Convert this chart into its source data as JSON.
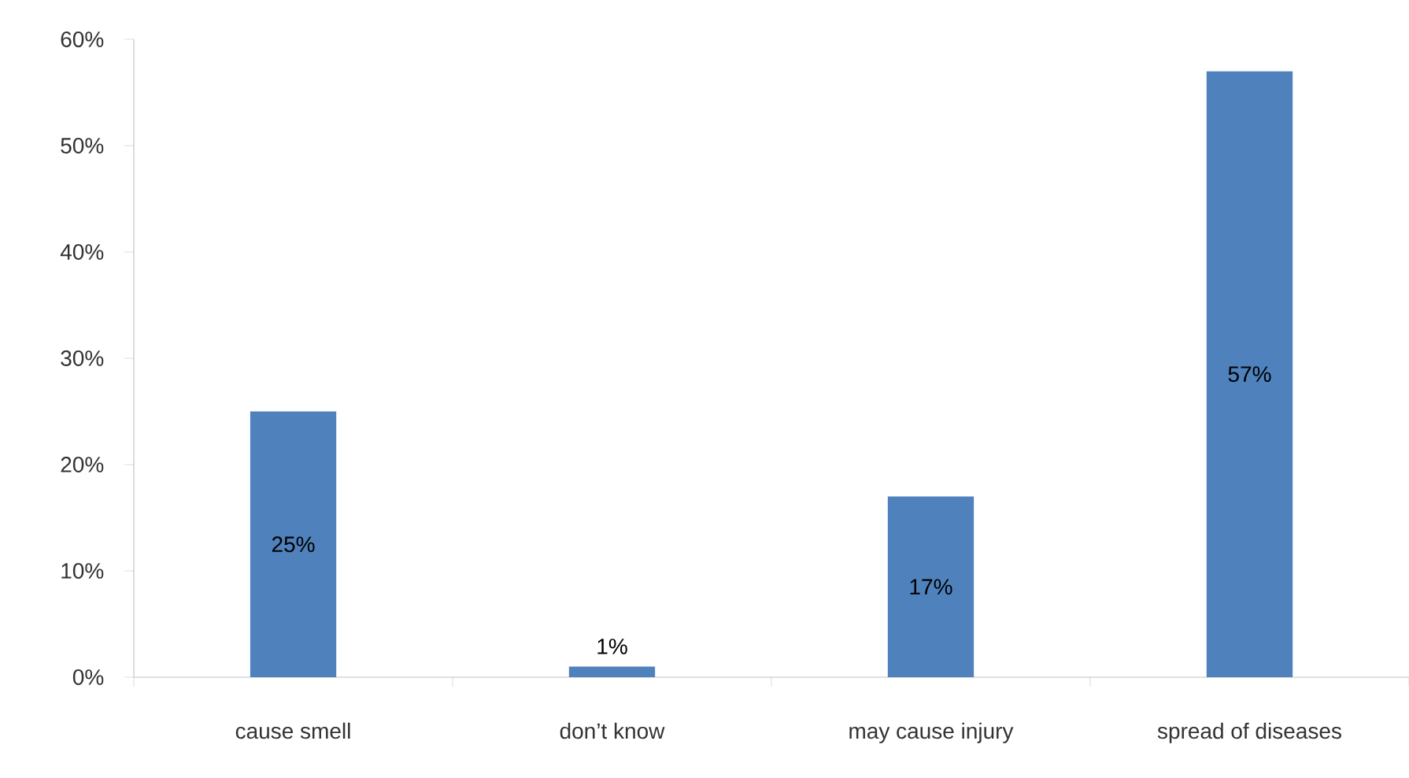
{
  "chart_data": {
    "type": "bar",
    "categories": [
      "cause smell",
      "don’t know",
      "may cause injury",
      "spread of diseases"
    ],
    "values": [
      25,
      1,
      17,
      57
    ],
    "value_labels": [
      "25%",
      "1%",
      "17%",
      "57%"
    ],
    "color": "#4f81bd",
    "ylim": [
      0,
      60
    ],
    "yticks": [
      {
        "value": 0,
        "label": "0%"
      },
      {
        "value": 10,
        "label": "10%"
      },
      {
        "value": 20,
        "label": "20%"
      },
      {
        "value": 30,
        "label": "30%"
      },
      {
        "value": 40,
        "label": "40%"
      },
      {
        "value": 50,
        "label": "50%"
      },
      {
        "value": 60,
        "label": "60%"
      }
    ],
    "grid": false
  }
}
